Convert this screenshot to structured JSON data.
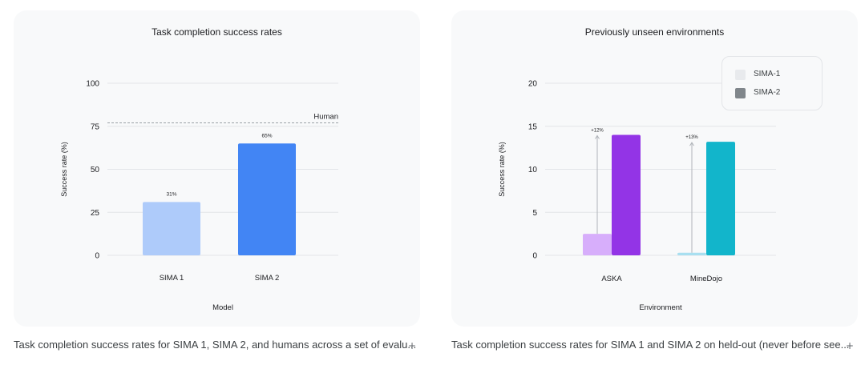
{
  "charts": [
    {
      "title": "Task completion success rates",
      "caption": "Task completion success rates for SIMA 1, SIMA 2, and humans across a set of evalu...",
      "chart_data": {
        "type": "bar",
        "categories": [
          "SIMA 1",
          "SIMA 2"
        ],
        "values": [
          31,
          65
        ],
        "value_labels": [
          "31%",
          "65%"
        ],
        "colors": [
          "#aecbfa",
          "#4285f4"
        ],
        "reference_line": {
          "label": "Human",
          "value": 77
        },
        "xlabel": "Model",
        "ylabel": "Success rate (%)",
        "ylim": [
          0,
          100
        ],
        "yticks": [
          "0",
          "25",
          "50",
          "75",
          "100"
        ],
        "grid": true
      }
    },
    {
      "title": "Previously unseen environments",
      "caption": "Task completion success rates for SIMA 1 and SIMA 2 on held-out (never before see...",
      "chart_data": {
        "type": "bar",
        "categories": [
          "ASKA",
          "MineDojo"
        ],
        "series": [
          {
            "name": "SIMA-1",
            "values": [
              2.5,
              0.3
            ],
            "colors": [
              "#d7aefb",
              "#a8dff0"
            ]
          },
          {
            "name": "SIMA-2",
            "values": [
              14,
              13.2
            ],
            "colors": [
              "#9334e6",
              "#12b5cb"
            ]
          }
        ],
        "improvement_labels": [
          "+12%",
          "+13%"
        ],
        "xlabel": "Environment",
        "ylabel": "Success rate (%)",
        "ylim": [
          0,
          20
        ],
        "yticks": [
          "0",
          "5",
          "10",
          "15",
          "20"
        ],
        "grid": true,
        "legend": {
          "placement": "top-right",
          "items": [
            {
              "label": "SIMA-1",
              "color": "#e8eaed"
            },
            {
              "label": "SIMA-2",
              "color": "#80868b"
            }
          ]
        }
      }
    }
  ]
}
